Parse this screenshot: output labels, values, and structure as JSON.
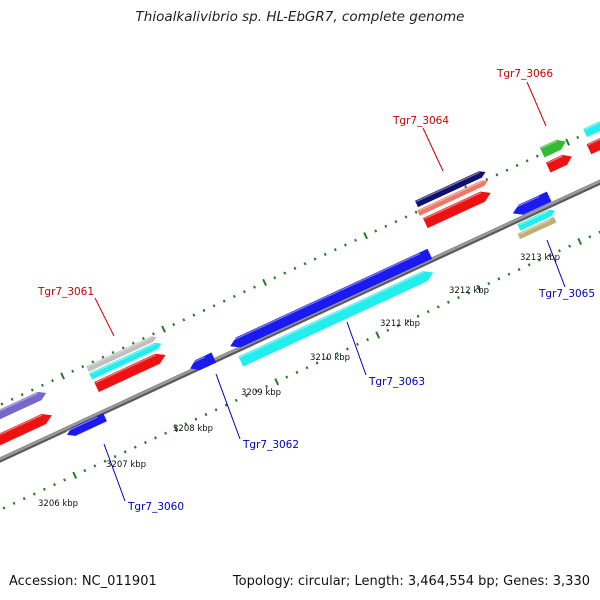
{
  "title": "Thioalkalivibrio sp. HL-EbGR7, complete genome",
  "footer": {
    "accession": "Accession: NC_011901",
    "topology": "Topology: circular; Length: 3,464,554 bp; Genes: 3,330"
  },
  "colors": {
    "forward_label": "#cc0000",
    "reverse_label": "#0000bb",
    "backbone": "#808080",
    "tick": "#2a7a2a",
    "blue": "#1a1aee",
    "cyan": "#22eeee",
    "red": "#ee1111",
    "green": "#33bb33",
    "navy": "#101070",
    "salmon": "#ee7766",
    "tan": "#bbb077",
    "silver": "#c0c0c0",
    "purple": "#7766cc"
  },
  "kbp_labels": [
    "3206 kbp",
    "3207 kbp",
    "3208 kbp",
    "3209 kbp",
    "3210 kbp",
    "3211 kbp",
    "3212 kbp",
    "3213 kbp"
  ],
  "gene_labels": [
    {
      "text": "Tgr7_3060",
      "strand": "reverse"
    },
    {
      "text": "Tgr7_3061",
      "strand": "forward"
    },
    {
      "text": "Tgr7_3062",
      "strand": "reverse"
    },
    {
      "text": "Tgr7_3063",
      "strand": "reverse"
    },
    {
      "text": "Tgr7_3064",
      "strand": "forward"
    },
    {
      "text": "Tgr7_3065",
      "strand": "reverse"
    },
    {
      "text": "Tgr7_3066",
      "strand": "forward"
    }
  ]
}
